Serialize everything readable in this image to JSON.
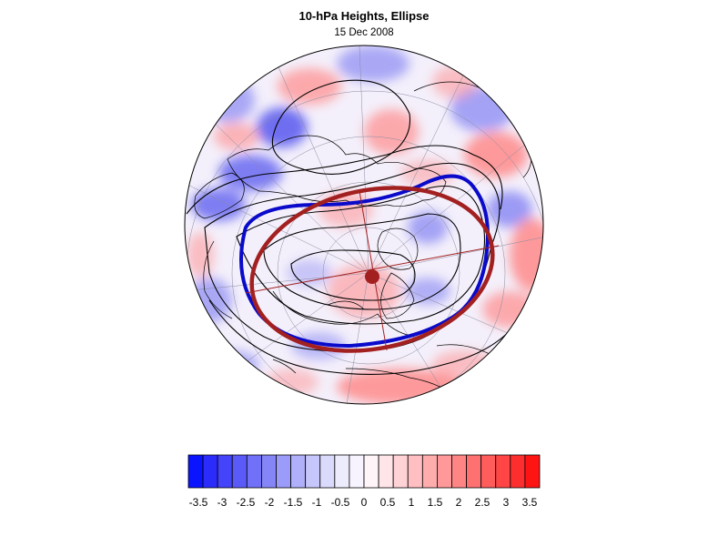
{
  "title": "10-hPa Heights, Ellipse",
  "subtitle": "15 Dec 2008",
  "colorbar": {
    "levels": [
      "-3.5",
      "-3",
      "-2.5",
      "-2",
      "-1.5",
      "-1",
      "-0.5",
      "0",
      "0.5",
      "1",
      "1.5",
      "2",
      "2.5",
      "3",
      "3.5"
    ],
    "colors": [
      "#0a14ff",
      "#2b2bfc",
      "#4444fa",
      "#5a5af9",
      "#7070f8",
      "#8585f8",
      "#9b9bf9",
      "#b0b0fa",
      "#c6c6fb",
      "#dadafc",
      "#ececfd",
      "#f8f4ff",
      "#fff4f8",
      "#ffe4e8",
      "#ffd2d6",
      "#ffbfc2",
      "#ffacac",
      "#ff9898",
      "#ff8585",
      "#ff7070",
      "#ff5c5c",
      "#ff4545",
      "#ff2e2e",
      "#ff1414"
    ]
  },
  "colors": {
    "ellipse": "#a32020",
    "contour_highlight": "#0a0aca",
    "contour": "#000000",
    "anomaly_positive": "#ff8a8a",
    "anomaly_negative": "#6060f0"
  }
}
